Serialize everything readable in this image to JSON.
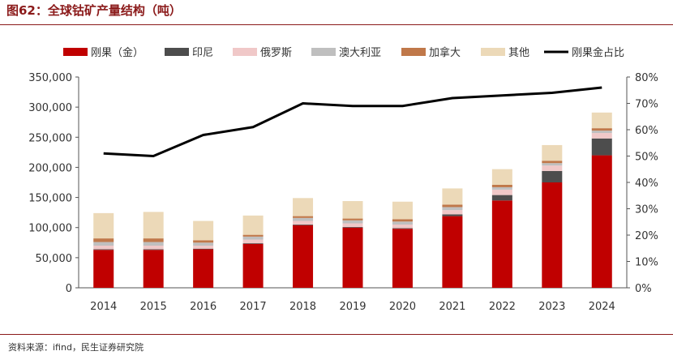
{
  "figure": {
    "title": "图62：全球钴矿产量结构（吨）",
    "source": "资料来源：ifind，民生证券研究院"
  },
  "chart_data": {
    "type": "bar",
    "stacked": true,
    "categories": [
      "2014",
      "2015",
      "2016",
      "2017",
      "2018",
      "2019",
      "2020",
      "2021",
      "2022",
      "2023",
      "2024"
    ],
    "y_left": {
      "ylim": [
        0,
        350000
      ],
      "ticks": [
        "0",
        "50,000",
        "100,000",
        "150,000",
        "200,000",
        "250,000",
        "300,000",
        "350,000"
      ]
    },
    "y_right": {
      "ylim": [
        0,
        80
      ],
      "ticks": [
        "0%",
        "10%",
        "20%",
        "30%",
        "40%",
        "50%",
        "60%",
        "70%",
        "80%"
      ]
    },
    "legend_position": "top",
    "series": [
      {
        "name": "刚果（金）",
        "color": "#c00000",
        "values": [
          63000,
          63000,
          64000,
          73000,
          104000,
          100000,
          98000,
          119000,
          145000,
          175000,
          220000
        ]
      },
      {
        "name": "印尼",
        "color": "#4d4d4d",
        "values": [
          1000,
          1000,
          1000,
          1000,
          1000,
          1000,
          1000,
          3000,
          9000,
          19000,
          28000
        ]
      },
      {
        "name": "俄罗斯",
        "color": "#f0c8c8",
        "values": [
          6000,
          6000,
          5000,
          6000,
          6000,
          6000,
          6000,
          7000,
          9000,
          9000,
          9000
        ]
      },
      {
        "name": "澳大利亚",
        "color": "#bfbfbf",
        "values": [
          6000,
          6000,
          5000,
          5000,
          5000,
          5000,
          5000,
          5000,
          4000,
          4000,
          4000
        ]
      },
      {
        "name": "加拿大",
        "color": "#c0784a",
        "values": [
          6000,
          6000,
          4000,
          3000,
          3000,
          3000,
          4000,
          4000,
          4000,
          4000,
          4000
        ]
      },
      {
        "name": "其他",
        "color": "#ecd9b8",
        "values": [
          42000,
          44000,
          32000,
          32000,
          30000,
          29000,
          29000,
          27000,
          26000,
          26000,
          26000
        ]
      }
    ],
    "line": {
      "name": "刚果金占比",
      "color": "#000000",
      "axis": "right",
      "values": [
        51,
        50,
        58,
        61,
        70,
        69,
        69,
        72,
        73,
        74,
        76
      ]
    }
  }
}
